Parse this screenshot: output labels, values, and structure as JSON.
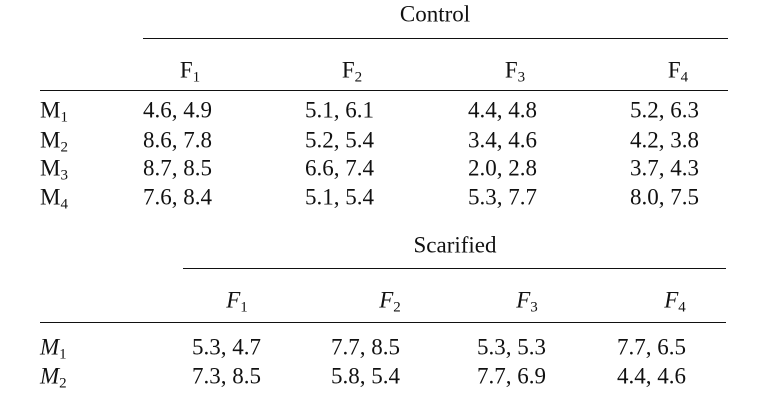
{
  "control": {
    "title": "Control",
    "columns": [
      {
        "base": "F",
        "sub": "1"
      },
      {
        "base": "F",
        "sub": "2"
      },
      {
        "base": "F",
        "sub": "3"
      },
      {
        "base": "F",
        "sub": "4"
      }
    ],
    "rows": [
      {
        "label": {
          "base": "M",
          "sub": "1"
        },
        "cells": [
          "4.6, 4.9",
          "5.1, 6.1",
          "4.4, 4.8",
          "5.2, 6.3"
        ]
      },
      {
        "label": {
          "base": "M",
          "sub": "2"
        },
        "cells": [
          "8.6, 7.8",
          "5.2, 5.4",
          "3.4, 4.6",
          "4.2, 3.8"
        ]
      },
      {
        "label": {
          "base": "M",
          "sub": "3"
        },
        "cells": [
          "8.7, 8.5",
          "6.6, 7.4",
          "2.0, 2.8",
          "3.7, 4.3"
        ]
      },
      {
        "label": {
          "base": "M",
          "sub": "4"
        },
        "cells": [
          "7.6, 8.4",
          "5.1, 5.4",
          "5.3, 7.7",
          "8.0, 7.5"
        ]
      }
    ]
  },
  "scarified": {
    "title": "Scarified",
    "columns": [
      {
        "base": "F",
        "sub": "1"
      },
      {
        "base": "F",
        "sub": "2"
      },
      {
        "base": "F",
        "sub": "3"
      },
      {
        "base": "F",
        "sub": "4"
      }
    ],
    "rows": [
      {
        "label": {
          "base": "M",
          "sub": "1"
        },
        "cells": [
          "5.3, 4.7",
          "7.7, 8.5",
          "5.3, 5.3",
          "7.7, 6.5"
        ]
      },
      {
        "label": {
          "base": "M",
          "sub": "2"
        },
        "cells": [
          "7.3, 8.5",
          "5.8, 5.4",
          "7.7, 6.9",
          "4.4, 4.6"
        ]
      }
    ]
  }
}
